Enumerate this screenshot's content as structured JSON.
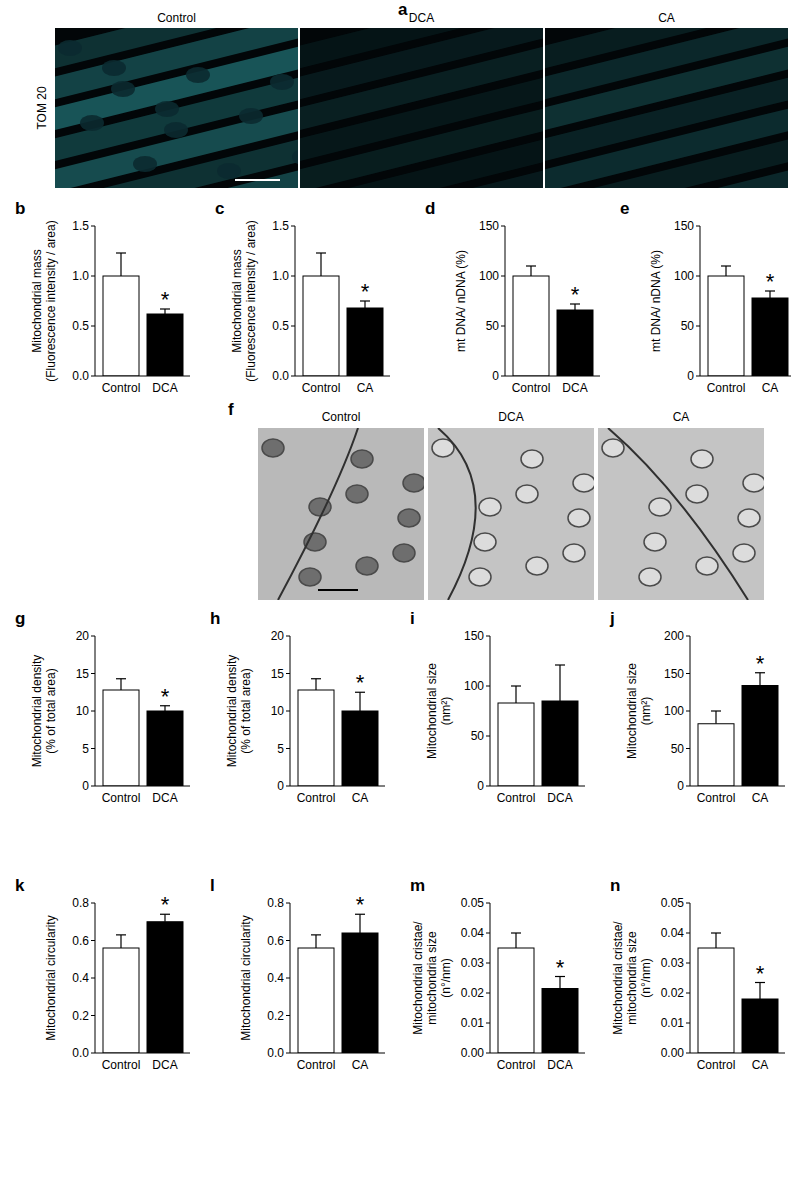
{
  "panels": {
    "a": {
      "letter": "a",
      "label": "TOM 20",
      "columns": [
        "Control",
        "DCA",
        "CA"
      ]
    },
    "f": {
      "letter": "f",
      "columns": [
        "Control",
        "DCA",
        "CA"
      ]
    }
  },
  "chart_data": [
    {
      "type": "bar",
      "title": "b",
      "y_label": [
        "Mitochondrial mass",
        "(Fluorescence intensity / area)"
      ],
      "categories": [
        "Control",
        "DCA"
      ],
      "values": [
        1.0,
        0.62
      ],
      "errors": [
        0.23,
        0.05
      ],
      "colors": [
        "#ffffff",
        "#000000"
      ],
      "ylim": [
        0,
        1.5
      ],
      "yticks": [
        {
          "value": 0,
          "label": "0.0"
        },
        0.5,
        {
          "value": 1,
          "label": "1.0"
        },
        1.5
      ],
      "annotations": [
        {
          "category": "DCA",
          "text": "*"
        }
      ]
    },
    {
      "type": "bar",
      "title": "c",
      "y_label": [
        "Mitochondrial mass",
        "(Fluorescence intensity / area)"
      ],
      "categories": [
        "Control",
        "CA"
      ],
      "values": [
        1.0,
        0.68
      ],
      "errors": [
        0.23,
        0.07
      ],
      "colors": [
        "#ffffff",
        "#000000"
      ],
      "ylim": [
        0,
        1.5
      ],
      "yticks": [
        {
          "value": 0,
          "label": "0.0"
        },
        0.5,
        {
          "value": 1,
          "label": "1.0"
        },
        1.5
      ],
      "annotations": [
        {
          "category": "CA",
          "text": "*"
        }
      ]
    },
    {
      "type": "bar",
      "title": "d",
      "y_label": [
        "mt DNA/ nDNA (%)"
      ],
      "categories": [
        "Control",
        "DCA"
      ],
      "values": [
        100,
        66
      ],
      "errors": [
        10,
        6
      ],
      "colors": [
        "#ffffff",
        "#000000"
      ],
      "ylim": [
        0,
        150
      ],
      "yticks": [
        0,
        50,
        100,
        150
      ],
      "annotations": [
        {
          "category": "DCA",
          "text": "*"
        }
      ]
    },
    {
      "type": "bar",
      "title": "e",
      "y_label": [
        "mt DNA/ nDNA (%)"
      ],
      "categories": [
        "Control",
        "CA"
      ],
      "values": [
        100,
        78
      ],
      "errors": [
        10,
        7
      ],
      "colors": [
        "#ffffff",
        "#000000"
      ],
      "ylim": [
        0,
        150
      ],
      "yticks": [
        0,
        50,
        100,
        150
      ],
      "annotations": [
        {
          "category": "CA",
          "text": "*"
        }
      ]
    },
    {
      "type": "bar",
      "title": "g",
      "y_label": [
        "Mitochondrial density",
        "(% of total area)"
      ],
      "categories": [
        "Control",
        "DCA"
      ],
      "values": [
        12.8,
        10
      ],
      "errors": [
        1.5,
        0.7
      ],
      "colors": [
        "#ffffff",
        "#000000"
      ],
      "ylim": [
        0,
        20
      ],
      "yticks": [
        0,
        5,
        10,
        15,
        20
      ],
      "annotations": [
        {
          "category": "DCA",
          "text": "*"
        }
      ]
    },
    {
      "type": "bar",
      "title": "h",
      "y_label": [
        "Mitochondrial density",
        "(% of total area)"
      ],
      "categories": [
        "Control",
        "CA"
      ],
      "values": [
        12.8,
        10
      ],
      "errors": [
        1.5,
        2.5
      ],
      "colors": [
        "#ffffff",
        "#000000"
      ],
      "ylim": [
        0,
        20
      ],
      "yticks": [
        0,
        5,
        10,
        15,
        20
      ],
      "annotations": [
        {
          "category": "CA",
          "text": "*"
        }
      ]
    },
    {
      "type": "bar",
      "title": "i",
      "y_label": [
        "Mitochondrial size",
        "(nm²)"
      ],
      "categories": [
        "Control",
        "DCA"
      ],
      "values": [
        83,
        85
      ],
      "errors": [
        17,
        36
      ],
      "colors": [
        "#ffffff",
        "#000000"
      ],
      "ylim": [
        0,
        150
      ],
      "yticks": [
        0,
        50,
        100,
        150
      ],
      "annotations": []
    },
    {
      "type": "bar",
      "title": "j",
      "y_label": [
        "Mitochondrial size",
        "(nm²)"
      ],
      "categories": [
        "Control",
        "CA"
      ],
      "values": [
        83,
        134
      ],
      "errors": [
        17,
        17
      ],
      "colors": [
        "#ffffff",
        "#000000"
      ],
      "ylim": [
        0,
        200
      ],
      "yticks": [
        0,
        50,
        100,
        150,
        200
      ],
      "annotations": [
        {
          "category": "CA",
          "text": "*"
        }
      ]
    },
    {
      "type": "bar",
      "title": "k",
      "y_label": [
        "Mitochondrial circularity"
      ],
      "categories": [
        "Control",
        "DCA"
      ],
      "values": [
        0.56,
        0.7
      ],
      "errors": [
        0.07,
        0.04
      ],
      "colors": [
        "#ffffff",
        "#000000"
      ],
      "ylim": [
        0,
        0.8
      ],
      "yticks": [
        {
          "value": 0,
          "label": "0.0"
        },
        0.2,
        0.4,
        0.6,
        0.8
      ],
      "annotations": [
        {
          "category": "DCA",
          "text": "*"
        }
      ]
    },
    {
      "type": "bar",
      "title": "l",
      "y_label": [
        "Mitochondrial circularity"
      ],
      "categories": [
        "Control",
        "CA"
      ],
      "values": [
        0.56,
        0.64
      ],
      "errors": [
        0.07,
        0.1
      ],
      "colors": [
        "#ffffff",
        "#000000"
      ],
      "ylim": [
        0,
        0.8
      ],
      "yticks": [
        {
          "value": 0,
          "label": "0.0"
        },
        0.2,
        0.4,
        0.6,
        0.8
      ],
      "annotations": [
        {
          "category": "CA",
          "text": "*"
        }
      ]
    },
    {
      "type": "bar",
      "title": "m",
      "y_label": [
        "Mitochondrial cristae/",
        "mitochondria size",
        "(n°/nm)"
      ],
      "categories": [
        "Control",
        "DCA"
      ],
      "values": [
        0.035,
        0.0215
      ],
      "errors": [
        0.005,
        0.004
      ],
      "colors": [
        "#ffffff",
        "#000000"
      ],
      "ylim": [
        0,
        0.05
      ],
      "yticks": [
        {
          "value": 0,
          "label": "0.00"
        },
        0.01,
        0.02,
        0.03,
        0.04,
        0.05
      ],
      "annotations": [
        {
          "category": "DCA",
          "text": "*"
        }
      ]
    },
    {
      "type": "bar",
      "title": "n",
      "y_label": [
        "Mitochondrial cristae/",
        "mitochondria size",
        "(n°/nm)"
      ],
      "categories": [
        "Control",
        "CA"
      ],
      "values": [
        0.035,
        0.018
      ],
      "errors": [
        0.005,
        0.0055
      ],
      "colors": [
        "#ffffff",
        "#000000"
      ],
      "ylim": [
        0,
        0.05
      ],
      "yticks": [
        {
          "value": 0,
          "label": "0.00"
        },
        0.01,
        0.02,
        0.03,
        0.04,
        0.05
      ],
      "annotations": [
        {
          "category": "CA",
          "text": "*"
        }
      ]
    }
  ]
}
